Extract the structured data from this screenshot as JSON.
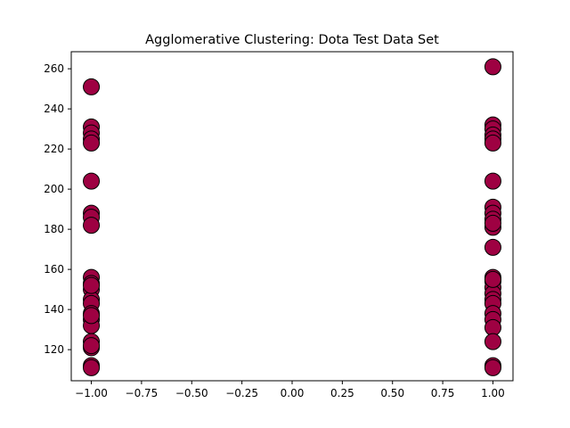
{
  "chart_data": {
    "type": "scatter",
    "title": "Agglomerative Clustering: Dota Test Data Set",
    "xlabel": "",
    "ylabel": "",
    "xlim": [
      -1.1,
      1.1
    ],
    "ylim": [
      104.5,
      268.5
    ],
    "xticks": [
      -1.0,
      -0.75,
      -0.5,
      -0.25,
      0.0,
      0.25,
      0.5,
      0.75,
      1.0
    ],
    "xtick_labels": [
      "−1.00",
      "−0.75",
      "−0.50",
      "−0.25",
      "0.00",
      "0.25",
      "0.50",
      "0.75",
      "1.00"
    ],
    "yticks": [
      120,
      140,
      160,
      180,
      200,
      220,
      240,
      260
    ],
    "ytick_labels": [
      "120",
      "140",
      "160",
      "180",
      "200",
      "220",
      "240",
      "260"
    ],
    "grid": false,
    "marker_color": "#9e0142",
    "marker_edge_color": "#000000",
    "series": [
      {
        "values": [
          {
            "x": -1,
            "y": 251
          },
          {
            "x": -1,
            "y": 231
          },
          {
            "x": -1,
            "y": 228
          },
          {
            "x": -1,
            "y": 225
          },
          {
            "x": -1,
            "y": 223
          },
          {
            "x": -1,
            "y": 204
          },
          {
            "x": -1,
            "y": 188
          },
          {
            "x": -1,
            "y": 186
          },
          {
            "x": -1,
            "y": 182
          },
          {
            "x": -1,
            "y": 156
          },
          {
            "x": -1,
            "y": 153
          },
          {
            "x": -1,
            "y": 150
          },
          {
            "x": -1,
            "y": 145
          },
          {
            "x": -1,
            "y": 143
          },
          {
            "x": -1,
            "y": 138
          },
          {
            "x": -1,
            "y": 135
          },
          {
            "x": -1,
            "y": 132
          },
          {
            "x": -1,
            "y": 124
          },
          {
            "x": -1,
            "y": 121
          },
          {
            "x": -1,
            "y": 112
          },
          {
            "x": -1,
            "y": 111
          },
          {
            "x": -1,
            "y": 152
          },
          {
            "x": -1,
            "y": 137
          },
          {
            "x": -1,
            "y": 122
          },
          {
            "x": 1,
            "y": 261
          },
          {
            "x": 1,
            "y": 232
          },
          {
            "x": 1,
            "y": 230
          },
          {
            "x": 1,
            "y": 227
          },
          {
            "x": 1,
            "y": 225
          },
          {
            "x": 1,
            "y": 223
          },
          {
            "x": 1,
            "y": 204
          },
          {
            "x": 1,
            "y": 191
          },
          {
            "x": 1,
            "y": 188
          },
          {
            "x": 1,
            "y": 185
          },
          {
            "x": 1,
            "y": 181
          },
          {
            "x": 1,
            "y": 171
          },
          {
            "x": 1,
            "y": 156
          },
          {
            "x": 1,
            "y": 154
          },
          {
            "x": 1,
            "y": 151
          },
          {
            "x": 1,
            "y": 148
          },
          {
            "x": 1,
            "y": 145
          },
          {
            "x": 1,
            "y": 143
          },
          {
            "x": 1,
            "y": 138
          },
          {
            "x": 1,
            "y": 135
          },
          {
            "x": 1,
            "y": 131
          },
          {
            "x": 1,
            "y": 124
          },
          {
            "x": 1,
            "y": 112
          },
          {
            "x": 1,
            "y": 111
          },
          {
            "x": 1,
            "y": 183
          },
          {
            "x": 1,
            "y": 155
          }
        ]
      }
    ]
  }
}
